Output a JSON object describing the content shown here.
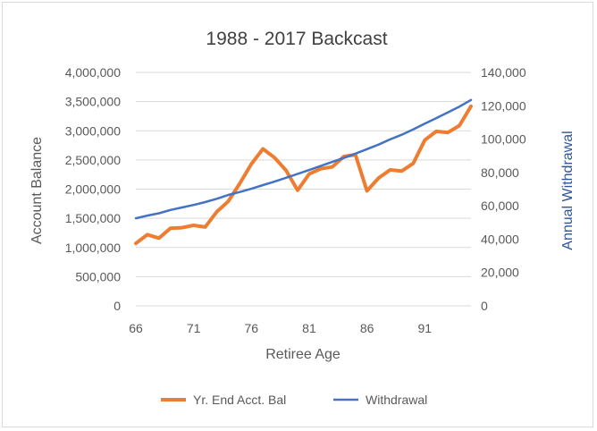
{
  "chart_data": {
    "type": "line",
    "title": "1988 - 2017 Backcast",
    "xlabel": "Retiree Age",
    "ylabel": "Account Balance",
    "y2label": "Annual Withdrawal",
    "x": [
      66,
      67,
      68,
      69,
      70,
      71,
      72,
      73,
      74,
      75,
      76,
      77,
      78,
      79,
      80,
      81,
      82,
      83,
      84,
      85,
      86,
      87,
      88,
      89,
      90,
      91,
      92,
      93,
      94,
      95
    ],
    "x_ticks": [
      "66",
      "71",
      "76",
      "81",
      "86",
      "91"
    ],
    "ylim": [
      0,
      4000000
    ],
    "y_ticks": [
      "0",
      "500,000",
      "1,000,000",
      "1,500,000",
      "2,000,000",
      "2,500,000",
      "3,000,000",
      "3,500,000",
      "4,000,000"
    ],
    "y2lim": [
      0,
      140000
    ],
    "y2_ticks": [
      "0",
      "20,000",
      "40,000",
      "60,000",
      "80,000",
      "100,000",
      "120,000",
      "140,000"
    ],
    "grid": "horizontal",
    "legend_position": "bottom",
    "series": [
      {
        "name": "Yr. End Acct. Bal",
        "axis": "left",
        "color": "#ed7d31",
        "values": [
          1070000,
          1220000,
          1160000,
          1330000,
          1340000,
          1380000,
          1350000,
          1610000,
          1790000,
          2100000,
          2430000,
          2690000,
          2540000,
          2320000,
          1980000,
          2260000,
          2350000,
          2380000,
          2560000,
          2590000,
          1970000,
          2190000,
          2330000,
          2310000,
          2440000,
          2840000,
          2990000,
          2970000,
          3090000,
          3420000
        ]
      },
      {
        "name": "Withdrawal",
        "axis": "right",
        "color": "#4472c4",
        "values": [
          52500,
          54100,
          55500,
          57500,
          59000,
          60500,
          62200,
          64200,
          66500,
          68300,
          70200,
          72400,
          74500,
          76800,
          79100,
          81500,
          83900,
          86300,
          88700,
          91300,
          94000,
          96700,
          99800,
          102600,
          105800,
          109300,
          112600,
          116000,
          119500,
          123500
        ]
      }
    ]
  }
}
